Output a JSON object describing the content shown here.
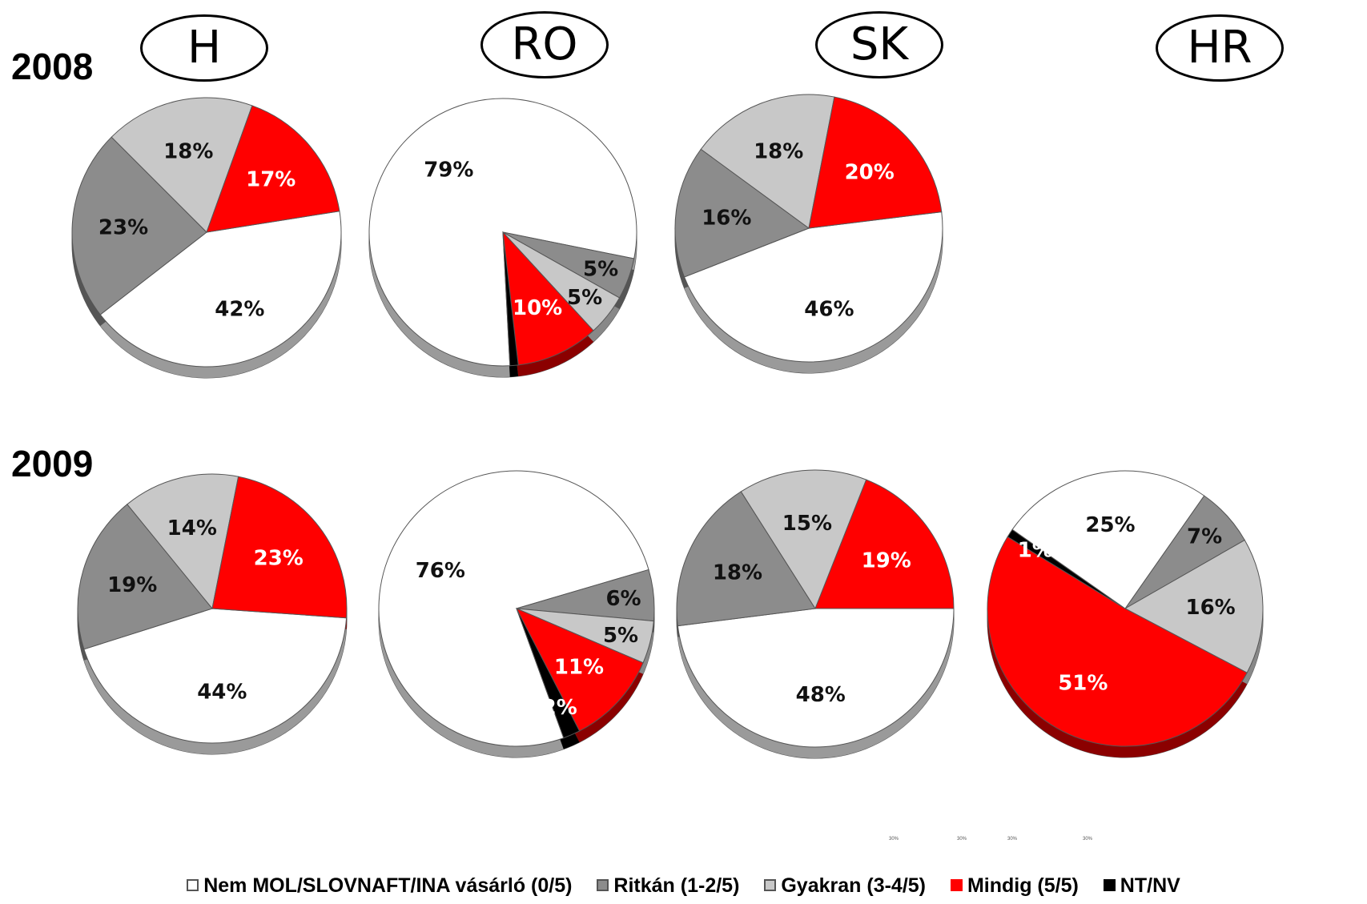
{
  "years": [
    "2008",
    "2009"
  ],
  "countries": [
    "H",
    "RO",
    "SK",
    "HR"
  ],
  "legend": [
    {
      "label": "Nem MOL/SLOVNAFT/INA vásárló (0/5)",
      "color": "#ffffff",
      "border": "#555555"
    },
    {
      "label": "Ritkán (1-2/5)",
      "color": "#8c8c8c",
      "border": "#555555"
    },
    {
      "label": "Gyakran (3-4/5)",
      "color": "#c8c8c8",
      "border": "#555555"
    },
    {
      "label": "Mindig (5/5)",
      "color": "#ff0000",
      "border": "#ff0000"
    },
    {
      "label": "NT/NV",
      "color": "#000000",
      "border": "#000000"
    }
  ],
  "tiny_ticks": [
    "30%",
    "30%",
    "30%",
    "30%"
  ],
  "chart_data": [
    {
      "type": "pie",
      "year": "2008",
      "country": "H",
      "slices": [
        {
          "label": "42%",
          "value": 42,
          "category": "Nem MOL/SLOVNAFT/INA vásárló (0/5)"
        },
        {
          "label": "23%",
          "value": 23,
          "category": "Ritkán (1-2/5)"
        },
        {
          "label": "18%",
          "value": 18,
          "category": "Gyakran (3-4/5)"
        },
        {
          "label": "17%",
          "value": 17,
          "category": "Mindig (5/5)"
        }
      ]
    },
    {
      "type": "pie",
      "year": "2008",
      "country": "RO",
      "slices": [
        {
          "label": "79%",
          "value": 79,
          "category": "Nem MOL/SLOVNAFT/INA vásárló (0/5)"
        },
        {
          "label": "5%",
          "value": 5,
          "category": "Ritkán (1-2/5)"
        },
        {
          "label": "5%",
          "value": 5,
          "category": "Gyakran (3-4/5)"
        },
        {
          "label": "10%",
          "value": 10,
          "category": "Mindig (5/5)"
        },
        {
          "label": "",
          "value": 1,
          "category": "NT/NV"
        }
      ]
    },
    {
      "type": "pie",
      "year": "2008",
      "country": "SK",
      "slices": [
        {
          "label": "46%",
          "value": 46,
          "category": "Nem MOL/SLOVNAFT/INA vásárló (0/5)"
        },
        {
          "label": "16%",
          "value": 16,
          "category": "Ritkán (1-2/5)"
        },
        {
          "label": "18%",
          "value": 18,
          "category": "Gyakran (3-4/5)"
        },
        {
          "label": "20%",
          "value": 20,
          "category": "Mindig (5/5)"
        }
      ]
    },
    {
      "type": "pie",
      "year": "2009",
      "country": "H",
      "slices": [
        {
          "label": "44%",
          "value": 44,
          "category": "Nem MOL/SLOVNAFT/INA vásárló (0/5)"
        },
        {
          "label": "19%",
          "value": 19,
          "category": "Ritkán (1-2/5)"
        },
        {
          "label": "14%",
          "value": 14,
          "category": "Gyakran (3-4/5)"
        },
        {
          "label": "23%",
          "value": 23,
          "category": "Mindig (5/5)"
        }
      ]
    },
    {
      "type": "pie",
      "year": "2009",
      "country": "RO",
      "slices": [
        {
          "label": "76%",
          "value": 76,
          "category": "Nem MOL/SLOVNAFT/INA vásárló (0/5)"
        },
        {
          "label": "6%",
          "value": 6,
          "category": "Ritkán (1-2/5)"
        },
        {
          "label": "5%",
          "value": 5,
          "category": "Gyakran (3-4/5)"
        },
        {
          "label": "11%",
          "value": 11,
          "category": "Mindig (5/5)"
        },
        {
          "label": "2%",
          "value": 2,
          "category": "NT/NV"
        }
      ]
    },
    {
      "type": "pie",
      "year": "2009",
      "country": "SK",
      "slices": [
        {
          "label": "48%",
          "value": 48,
          "category": "Nem MOL/SLOVNAFT/INA vásárló (0/5)"
        },
        {
          "label": "18%",
          "value": 18,
          "category": "Ritkán (1-2/5)"
        },
        {
          "label": "15%",
          "value": 15,
          "category": "Gyakran (3-4/5)"
        },
        {
          "label": "19%",
          "value": 19,
          "category": "Mindig (5/5)"
        }
      ]
    },
    {
      "type": "pie",
      "year": "2009",
      "country": "HR",
      "slices": [
        {
          "label": "7%",
          "value": 7,
          "category": "Ritkán (1-2/5)"
        },
        {
          "label": "16%",
          "value": 16,
          "category": "Gyakran (3-4/5)"
        },
        {
          "label": "51%",
          "value": 51,
          "category": "Mindig (5/5)"
        },
        {
          "label": "1%",
          "value": 1,
          "category": "NT/NV"
        },
        {
          "label": "25%",
          "value": 25,
          "category": "Nem MOL/SLOVNAFT/INA vásárló (0/5)"
        }
      ]
    }
  ]
}
